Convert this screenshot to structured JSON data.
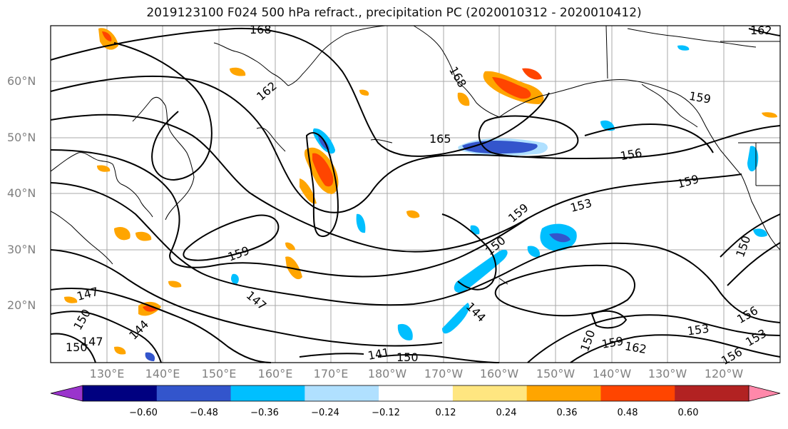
{
  "title": "2019123100 F024 500 hPa refract., precipitation PC (2020010312 - 2020010412)",
  "lat_labels": [
    "60°N",
    "50°N",
    "40°N",
    "30°N",
    "20°N"
  ],
  "lon_labels": [
    "130°E",
    "140°E",
    "150°E",
    "160°E",
    "170°E",
    "180°W",
    "170°W",
    "160°W",
    "150°W",
    "140°W",
    "130°W",
    "120°W"
  ],
  "contour_labels": [
    "168",
    "162",
    "168",
    "165",
    "159",
    "156",
    "159",
    "159",
    "153",
    "150",
    "159",
    "147",
    "144",
    "147",
    "144",
    "150",
    "147",
    "150",
    "141",
    "150",
    "150",
    "159",
    "162",
    "153",
    "156",
    "153",
    "156",
    "162",
    "150"
  ],
  "colorbar": {
    "ticks": [
      "−0.60",
      "−0.48",
      "−0.36",
      "−0.24",
      "−0.12",
      "0.12",
      "0.24",
      "0.36",
      "0.48",
      "0.60"
    ],
    "colors": [
      "#9a34cc",
      "#000080",
      "#3355cc",
      "#00bfff",
      "#b0e0ff",
      "#ffffff",
      "#ffe680",
      "#ffa500",
      "#ff4500",
      "#b22222",
      "#ff88aa"
    ]
  }
}
